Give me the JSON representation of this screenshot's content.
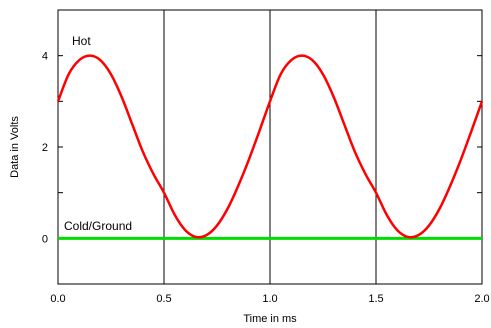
{
  "chart_data": {
    "type": "line",
    "title": "",
    "xlabel": "Time in ms",
    "ylabel": "Data in Volts",
    "xlim": [
      0,
      2.0
    ],
    "ylim": [
      -1.0,
      5.0
    ],
    "x_ticks": [
      {
        "value": 0.0,
        "label": "0.0"
      },
      {
        "value": 0.5,
        "label": "0.5"
      },
      {
        "value": 1.0,
        "label": "1.0"
      },
      {
        "value": 1.5,
        "label": "1.5"
      },
      {
        "value": 2.0,
        "label": "2.0"
      }
    ],
    "y_ticks": [
      {
        "value": 0,
        "label": "0"
      },
      {
        "value": 2,
        "label": "2"
      },
      {
        "value": 4,
        "label": "4"
      }
    ],
    "y_minor_ticks": [
      1,
      3
    ],
    "grid": {
      "vertical": true,
      "horizontal": false
    },
    "series": [
      {
        "name": "Hot",
        "color": "#ff0000",
        "x": [
          0.0,
          0.05,
          0.1,
          0.15,
          0.2,
          0.25,
          0.3,
          0.35,
          0.4,
          0.45,
          0.5,
          0.55,
          0.6,
          0.65,
          0.7,
          0.75,
          0.8,
          0.85,
          0.9,
          0.95,
          1.0,
          1.05,
          1.1,
          1.15,
          1.2,
          1.25,
          1.3,
          1.35,
          1.4,
          1.45,
          1.5,
          1.55,
          1.6,
          1.65,
          1.7,
          1.75,
          1.8,
          1.85,
          1.9,
          1.95,
          2.0
        ],
        "y": [
          3.0,
          3.59,
          3.9,
          4.0,
          3.9,
          3.59,
          3.1,
          2.5,
          1.9,
          1.41,
          1.0,
          0.52,
          0.18,
          0.03,
          0.07,
          0.28,
          0.65,
          1.15,
          1.72,
          2.35,
          3.0,
          3.59,
          3.9,
          4.0,
          3.9,
          3.59,
          3.1,
          2.5,
          1.9,
          1.41,
          1.0,
          0.52,
          0.18,
          0.03,
          0.07,
          0.28,
          0.65,
          1.15,
          1.72,
          2.35,
          3.0
        ]
      },
      {
        "name": "Cold/Ground",
        "color": "#00dd00",
        "x": [
          0.0,
          2.0
        ],
        "y": [
          0,
          0
        ]
      }
    ]
  }
}
